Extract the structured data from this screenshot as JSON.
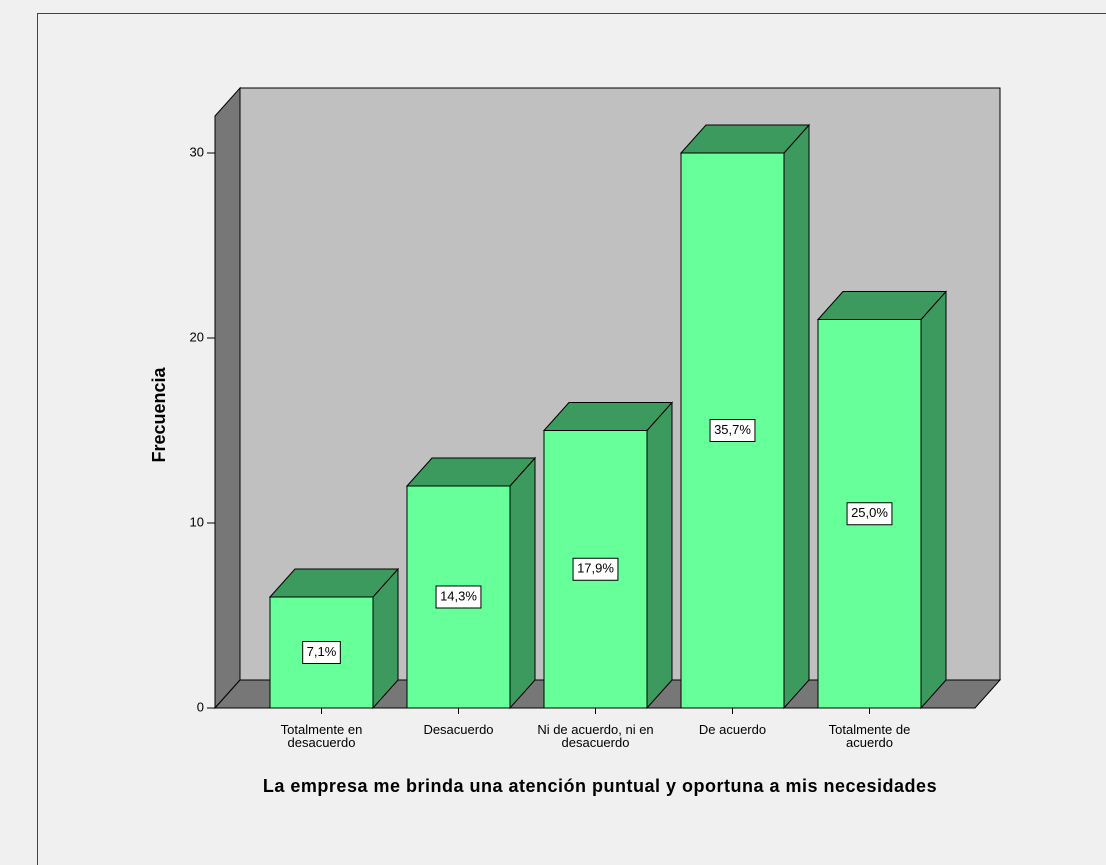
{
  "chart_data": {
    "type": "bar",
    "title": "La empresa me brinda una atención puntual y oportuna a mis necesidades",
    "y_label": "Frecuencia",
    "categories": [
      "Totalmente en desacuerdo",
      "Desacuerdo",
      "Ni de acuerdo, ni en desacuerdo",
      "De acuerdo",
      "Totalmente de acuerdo"
    ],
    "values": [
      6,
      12,
      15,
      30,
      21
    ],
    "percentages": [
      7.1,
      14.3,
      17.9,
      35.7,
      25.0
    ],
    "value_labels": [
      "7,1%",
      "14,3%",
      "17,9%",
      "35,7%",
      "25,0%"
    ],
    "color": "#66ff99",
    "ylim": [
      0,
      32
    ],
    "yticks": [
      0,
      10,
      20,
      30
    ]
  }
}
